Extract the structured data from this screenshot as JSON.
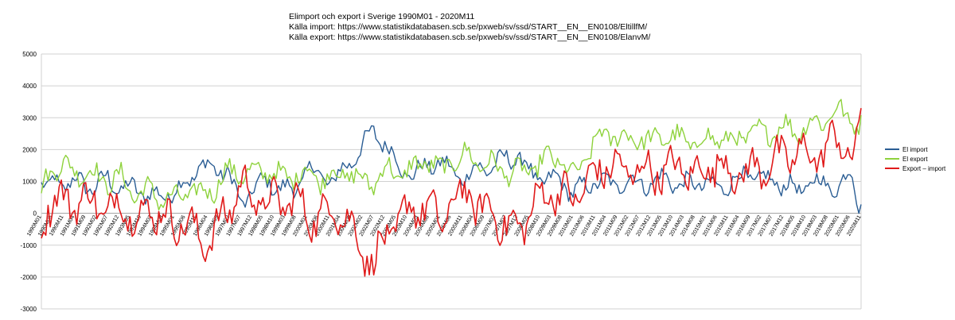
{
  "chart_data": {
    "type": "line",
    "title_lines": [
      "Elimport och export i Sverige 1990M01 - 2020M11",
      "Källa import: https://www.statistikdatabasen.scb.se/pxweb/sv/ssd/START__EN__EN0108/EltillfM/",
      "Källa export: https://www.statistikdatabasen.scb.se/pxweb/sv/ssd/START__EN__EN0108/ElanvM/"
    ],
    "ylim": [
      -3000,
      5000
    ],
    "yticks": [
      -3000,
      -2000,
      -1000,
      0,
      1000,
      2000,
      3000,
      4000,
      5000
    ],
    "grid": true,
    "legend_position": "right",
    "x_tick_labels": [
      "1990M01",
      "1990M06",
      "1990M11",
      "1991M04",
      "1991M09",
      "1992M02",
      "1992M07",
      "1992M12",
      "1993M05",
      "1993M10",
      "1994M03",
      "1994M08",
      "1995M01",
      "1995M06",
      "1995M11",
      "1996M04",
      "1996M09",
      "1997M02",
      "1997M07",
      "1997M12",
      "1998M05",
      "1998M10",
      "1999M03",
      "1999M08",
      "2000M01",
      "2000M06",
      "2000M11",
      "2001M04",
      "2001M09",
      "2002M02",
      "2002M07",
      "2002M12",
      "2003M05",
      "2003M10",
      "2004M03",
      "2004M08",
      "2005M01",
      "2005M06",
      "2005M11",
      "2006M04",
      "2006M09",
      "2007M02",
      "2007M07",
      "2007M12",
      "2008M05",
      "2008M10",
      "2009M03",
      "2009M08",
      "2010M01",
      "2010M06",
      "2010M11",
      "2011M04",
      "2011M09",
      "2012M02",
      "2012M07",
      "2012M12",
      "2013M05",
      "2013M10",
      "2014M03",
      "2014M08",
      "2015M01",
      "2015M06",
      "2015M11",
      "2016M04",
      "2016M09",
      "2017M02",
      "2017M07",
      "2017M12",
      "2018M05",
      "2018M10",
      "2019M03",
      "2019M08",
      "2020M01",
      "2020M06",
      "2020M11"
    ],
    "series": [
      {
        "name": "El import",
        "color": "#2a5d94",
        "anchors": [
          [
            0,
            900
          ],
          [
            3,
            600
          ],
          [
            6,
            1200
          ],
          [
            12,
            800
          ],
          [
            18,
            1100
          ],
          [
            24,
            700
          ],
          [
            30,
            1200
          ],
          [
            36,
            650
          ],
          [
            42,
            900
          ],
          [
            48,
            500
          ],
          [
            54,
            600
          ],
          [
            60,
            650
          ],
          [
            66,
            1000
          ],
          [
            72,
            1500
          ],
          [
            78,
            1400
          ],
          [
            84,
            1300
          ],
          [
            90,
            300
          ],
          [
            96,
            800
          ],
          [
            102,
            1000
          ],
          [
            108,
            800
          ],
          [
            114,
            700
          ],
          [
            120,
            1400
          ],
          [
            126,
            1200
          ],
          [
            132,
            1000
          ],
          [
            138,
            1500
          ],
          [
            144,
            2000
          ],
          [
            150,
            2600
          ],
          [
            156,
            2100
          ],
          [
            162,
            1400
          ],
          [
            168,
            1200
          ],
          [
            174,
            1500
          ],
          [
            180,
            1600
          ],
          [
            186,
            1300
          ],
          [
            192,
            1100
          ],
          [
            198,
            1500
          ],
          [
            204,
            1400
          ],
          [
            210,
            1800
          ],
          [
            216,
            1700
          ],
          [
            222,
            1200
          ],
          [
            228,
            1000
          ],
          [
            234,
            1100
          ],
          [
            240,
            600
          ],
          [
            246,
            900
          ],
          [
            252,
            1000
          ],
          [
            258,
            900
          ],
          [
            264,
            1000
          ],
          [
            270,
            1000
          ],
          [
            276,
            900
          ],
          [
            282,
            1200
          ],
          [
            288,
            800
          ],
          [
            294,
            1000
          ],
          [
            300,
            900
          ],
          [
            306,
            800
          ],
          [
            312,
            1000
          ],
          [
            318,
            1200
          ],
          [
            324,
            1100
          ],
          [
            330,
            1000
          ],
          [
            336,
            900
          ],
          [
            342,
            700
          ],
          [
            348,
            1000
          ],
          [
            354,
            900
          ],
          [
            360,
            800
          ],
          [
            366,
            1300
          ],
          [
            369,
            300
          ]
        ]
      },
      {
        "name": "El export",
        "color": "#8ed23c",
        "anchors": [
          [
            0,
            600
          ],
          [
            3,
            1300
          ],
          [
            6,
            1500
          ],
          [
            12,
            1400
          ],
          [
            18,
            1300
          ],
          [
            24,
            1200
          ],
          [
            30,
            1000
          ],
          [
            36,
            1100
          ],
          [
            42,
            600
          ],
          [
            48,
            700
          ],
          [
            54,
            500
          ],
          [
            60,
            400
          ],
          [
            66,
            700
          ],
          [
            72,
            600
          ],
          [
            78,
            800
          ],
          [
            84,
            1300
          ],
          [
            90,
            1300
          ],
          [
            96,
            1200
          ],
          [
            102,
            1400
          ],
          [
            108,
            1100
          ],
          [
            114,
            1200
          ],
          [
            120,
            1300
          ],
          [
            126,
            1100
          ],
          [
            132,
            1200
          ],
          [
            138,
            1300
          ],
          [
            144,
            1000
          ],
          [
            150,
            1000
          ],
          [
            156,
            1400
          ],
          [
            162,
            1200
          ],
          [
            168,
            1400
          ],
          [
            174,
            1700
          ],
          [
            180,
            1300
          ],
          [
            186,
            1700
          ],
          [
            192,
            1800
          ],
          [
            198,
            1600
          ],
          [
            204,
            1500
          ],
          [
            210,
            1300
          ],
          [
            216,
            1300
          ],
          [
            222,
            1400
          ],
          [
            228,
            1700
          ],
          [
            234,
            1700
          ],
          [
            240,
            1100
          ],
          [
            246,
            1800
          ],
          [
            252,
            2400
          ],
          [
            258,
            2500
          ],
          [
            264,
            2300
          ],
          [
            270,
            2400
          ],
          [
            276,
            2200
          ],
          [
            282,
            2500
          ],
          [
            288,
            2300
          ],
          [
            294,
            2200
          ],
          [
            300,
            2300
          ],
          [
            306,
            2400
          ],
          [
            312,
            2200
          ],
          [
            318,
            2500
          ],
          [
            324,
            2500
          ],
          [
            330,
            2600
          ],
          [
            336,
            2700
          ],
          [
            342,
            2600
          ],
          [
            348,
            2800
          ],
          [
            354,
            3000
          ],
          [
            360,
            3200
          ],
          [
            366,
            3000
          ],
          [
            369,
            2700
          ]
        ]
      },
      {
        "name": "Export – import",
        "color": "#e01a1a",
        "anchors": [
          [
            0,
            -300
          ],
          [
            3,
            300
          ],
          [
            6,
            300
          ],
          [
            12,
            500
          ],
          [
            18,
            300
          ],
          [
            24,
            500
          ],
          [
            30,
            -100
          ],
          [
            36,
            500
          ],
          [
            42,
            -300
          ],
          [
            48,
            200
          ],
          [
            54,
            -100
          ],
          [
            60,
            -300
          ],
          [
            66,
            -300
          ],
          [
            72,
            -900
          ],
          [
            78,
            -600
          ],
          [
            84,
            0
          ],
          [
            90,
            1000
          ],
          [
            96,
            400
          ],
          [
            102,
            400
          ],
          [
            108,
            300
          ],
          [
            114,
            500
          ],
          [
            120,
            -100
          ],
          [
            126,
            -100
          ],
          [
            132,
            200
          ],
          [
            138,
            -200
          ],
          [
            144,
            -1000
          ],
          [
            150,
            -1600
          ],
          [
            156,
            -700
          ],
          [
            162,
            -200
          ],
          [
            168,
            200
          ],
          [
            174,
            200
          ],
          [
            180,
            -300
          ],
          [
            186,
            400
          ],
          [
            192,
            700
          ],
          [
            198,
            100
          ],
          [
            204,
            100
          ],
          [
            210,
            -500
          ],
          [
            216,
            -400
          ],
          [
            222,
            200
          ],
          [
            228,
            700
          ],
          [
            234,
            600
          ],
          [
            240,
            500
          ],
          [
            246,
            900
          ],
          [
            252,
            1400
          ],
          [
            258,
            1500
          ],
          [
            264,
            1300
          ],
          [
            270,
            1400
          ],
          [
            276,
            1300
          ],
          [
            282,
            1300
          ],
          [
            288,
            1500
          ],
          [
            294,
            1200
          ],
          [
            300,
            1400
          ],
          [
            306,
            1600
          ],
          [
            312,
            1200
          ],
          [
            318,
            1300
          ],
          [
            324,
            1400
          ],
          [
            330,
            1600
          ],
          [
            336,
            1800
          ],
          [
            342,
            1900
          ],
          [
            348,
            1800
          ],
          [
            354,
            2000
          ],
          [
            360,
            2400
          ],
          [
            366,
            1700
          ],
          [
            369,
            2600
          ]
        ]
      }
    ]
  }
}
